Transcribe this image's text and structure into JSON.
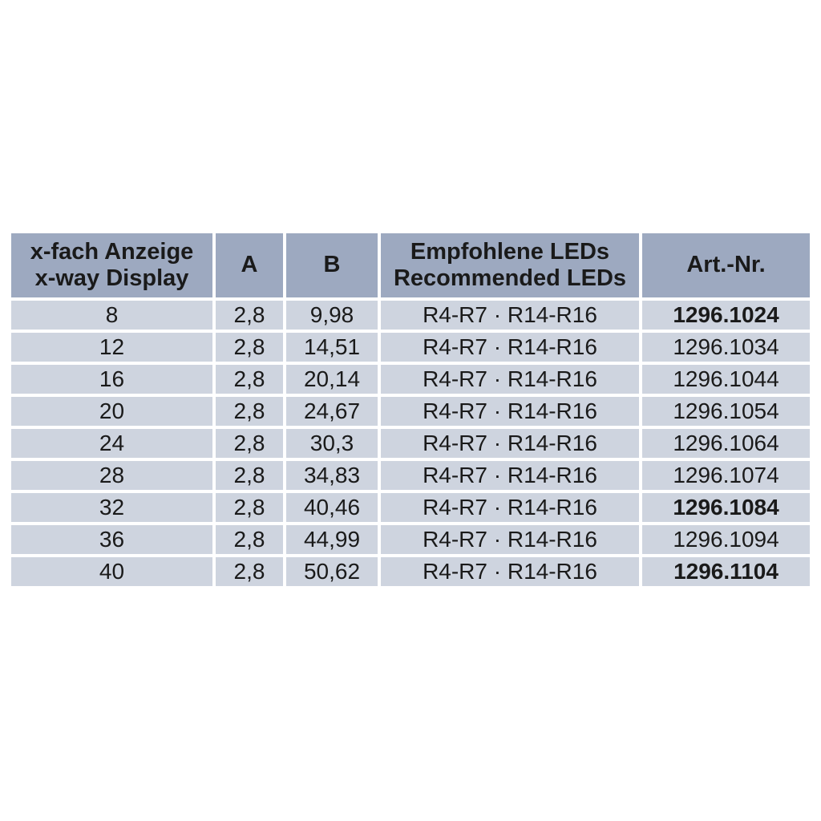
{
  "table": {
    "colors": {
      "header_bg": "#9DA9C0",
      "row_bg": "#CED4DF",
      "separator": "#FFFFFF",
      "text": "#1A1A1A"
    },
    "header": {
      "display_line1": "x-fach Anzeige",
      "display_line2": "x-way Display",
      "a": "A",
      "b": "B",
      "leds_line1": "Empfohlene LEDs",
      "leds_line2": "Recommended LEDs",
      "art_nr": "Art.-Nr."
    },
    "rows": [
      {
        "display": "8",
        "a": "2,8",
        "b": "9,98",
        "leds": "R4-R7 · R14-R16",
        "art_nr": "1296.1024",
        "art_bold": true
      },
      {
        "display": "12",
        "a": "2,8",
        "b": "14,51",
        "leds": "R4-R7 · R14-R16",
        "art_nr": "1296.1034",
        "art_bold": false
      },
      {
        "display": "16",
        "a": "2,8",
        "b": "20,14",
        "leds": "R4-R7 · R14-R16",
        "art_nr": "1296.1044",
        "art_bold": false
      },
      {
        "display": "20",
        "a": "2,8",
        "b": "24,67",
        "leds": "R4-R7 · R14-R16",
        "art_nr": "1296.1054",
        "art_bold": false
      },
      {
        "display": "24",
        "a": "2,8",
        "b": "30,3",
        "leds": "R4-R7 · R14-R16",
        "art_nr": "1296.1064",
        "art_bold": false
      },
      {
        "display": "28",
        "a": "2,8",
        "b": "34,83",
        "leds": "R4-R7 · R14-R16",
        "art_nr": "1296.1074",
        "art_bold": false
      },
      {
        "display": "32",
        "a": "2,8",
        "b": "40,46",
        "leds": "R4-R7 · R14-R16",
        "art_nr": "1296.1084",
        "art_bold": true
      },
      {
        "display": "36",
        "a": "2,8",
        "b": "44,99",
        "leds": "R4-R7 · R14-R16",
        "art_nr": "1296.1094",
        "art_bold": false
      },
      {
        "display": "40",
        "a": "2,8",
        "b": "50,62",
        "leds": "R4-R7 · R14-R16",
        "art_nr": "1296.1104",
        "art_bold": true
      }
    ]
  }
}
